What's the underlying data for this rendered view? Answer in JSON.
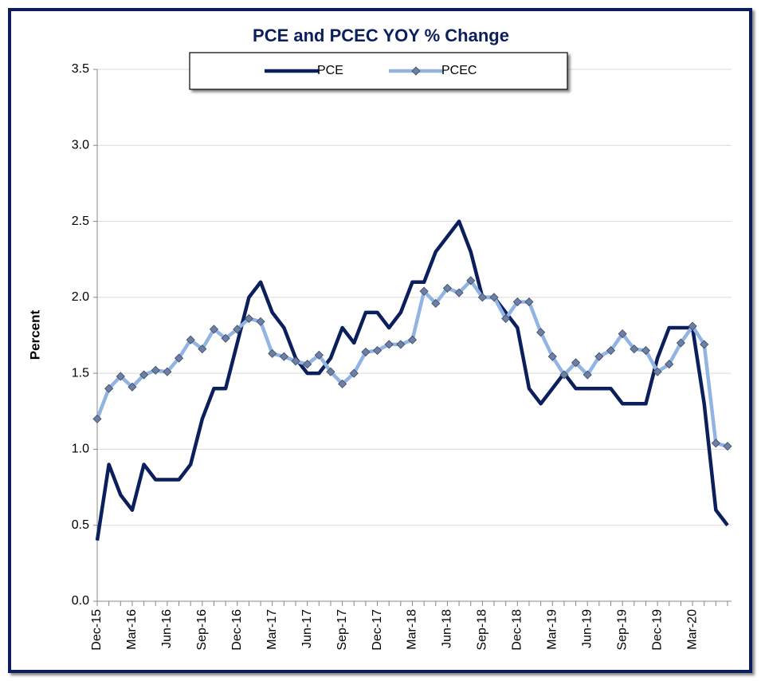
{
  "chart_data": {
    "type": "line",
    "title": "PCE and PCEC YOY % Change",
    "y_label": "Percent",
    "categories": [
      "Dec-15",
      null,
      null,
      "Mar-16",
      null,
      null,
      "Jun-16",
      null,
      null,
      "Sep-16",
      null,
      null,
      "Dec-16",
      null,
      null,
      "Mar-17",
      null,
      null,
      "Jun-17",
      null,
      null,
      "Sep-17",
      null,
      null,
      "Dec-17",
      null,
      null,
      "Mar-18",
      null,
      null,
      "Jun-18",
      null,
      null,
      "Sep-18",
      null,
      null,
      "Dec-18",
      null,
      null,
      "Mar-19",
      null,
      null,
      "Jun-19",
      null,
      null,
      "Sep-19",
      null,
      null,
      "Dec-19",
      null,
      null,
      "Mar-20",
      null,
      null,
      null
    ],
    "series": [
      {
        "name": "PCE",
        "color": "#0b1f5c",
        "values": [
          0.4,
          0.9,
          0.7,
          0.6,
          0.9,
          0.8,
          0.8,
          0.8,
          0.9,
          1.2,
          1.4,
          1.4,
          1.7,
          2.0,
          2.1,
          1.9,
          1.8,
          1.6,
          1.5,
          1.5,
          1.6,
          1.8,
          1.7,
          1.9,
          1.9,
          1.8,
          1.9,
          2.1,
          2.1,
          2.3,
          2.4,
          2.5,
          2.3,
          2.0,
          2.0,
          1.9,
          1.8,
          1.4,
          1.3,
          1.4,
          1.5,
          1.4,
          1.4,
          1.4,
          1.4,
          1.3,
          1.3,
          1.3,
          1.6,
          1.8,
          1.8,
          1.8,
          1.3,
          0.6,
          0.5
        ]
      },
      {
        "name": "PCEC",
        "color": "#92b4e3",
        "values": [
          1.2,
          1.4,
          1.48,
          1.41,
          1.49,
          1.52,
          1.51,
          1.6,
          1.72,
          1.66,
          1.79,
          1.73,
          1.79,
          1.86,
          1.84,
          1.63,
          1.61,
          1.58,
          1.56,
          1.62,
          1.51,
          1.43,
          1.5,
          1.64,
          1.65,
          1.69,
          1.69,
          1.72,
          2.04,
          1.96,
          2.06,
          2.03,
          2.11,
          2.0,
          2.0,
          1.86,
          1.97,
          1.97,
          1.77,
          1.61,
          1.49,
          1.57,
          1.49,
          1.61,
          1.65,
          1.76,
          1.66,
          1.65,
          1.51,
          1.56,
          1.7,
          1.81,
          1.69,
          1.04,
          1.02
        ]
      }
    ],
    "ylim": [
      0,
      3.5
    ],
    "yticks": [
      {
        "value": 0,
        "label": "0.0"
      },
      0.5,
      {
        "value": 1,
        "label": "1.0"
      },
      1.5,
      {
        "value": 2,
        "label": "2.0"
      },
      2.5,
      {
        "value": 3,
        "label": "3.0"
      },
      3.5
    ],
    "grid": true,
    "legend": "top"
  }
}
